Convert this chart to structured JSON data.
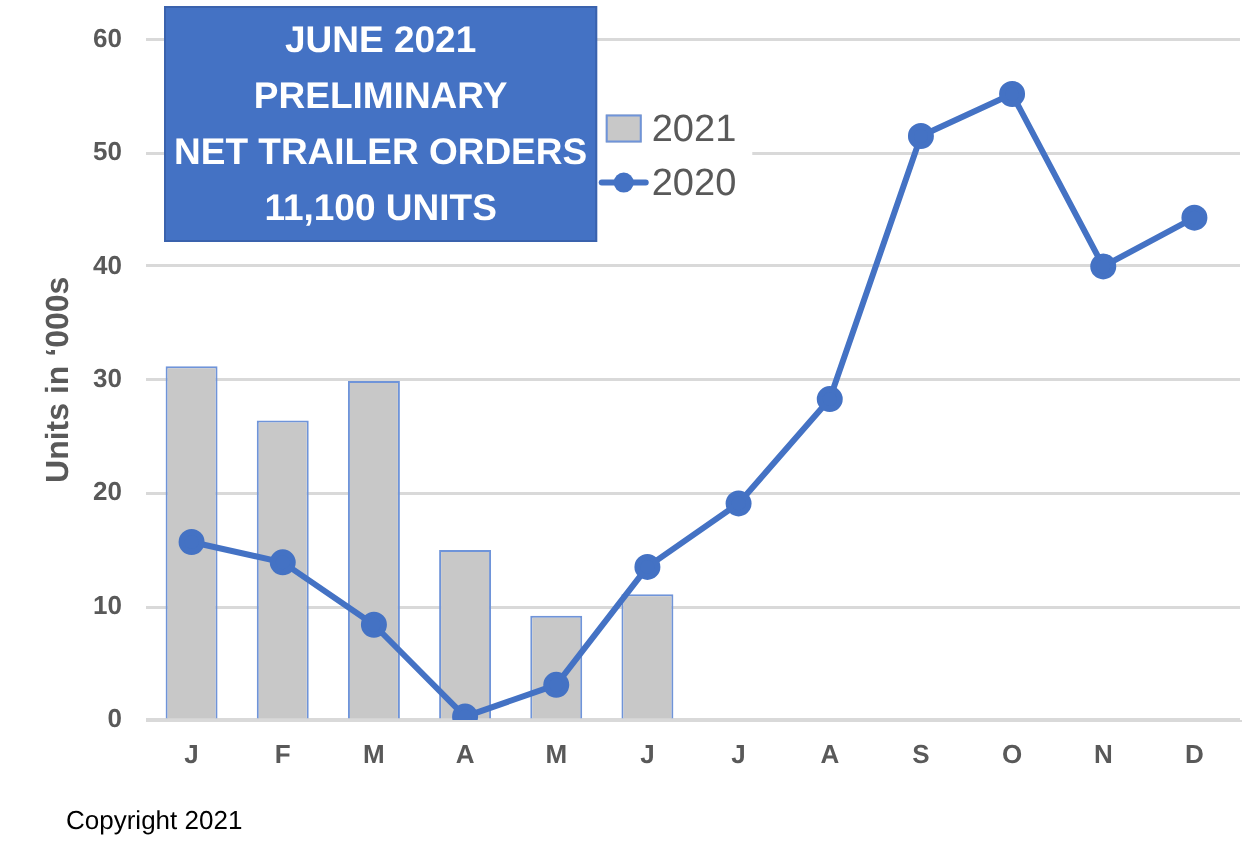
{
  "chart_data": {
    "type": "bar",
    "title": "JUNE 2021\nPRELIMINARY\nNET TRAILER ORDERS\n11,100 UNITS",
    "ylabel": "Units in ‘000s",
    "categories": [
      "J",
      "F",
      "M",
      "A",
      "M",
      "J",
      "J",
      "A",
      "S",
      "O",
      "N",
      "D"
    ],
    "series": [
      {
        "name": "2021",
        "color": "#c8c8c8",
        "values": [
          31.2,
          26.4,
          29.9,
          15.0,
          9.2,
          11.1,
          null,
          null,
          null,
          null,
          null,
          null
        ]
      },
      {
        "name": "2020",
        "type": "line",
        "color": "#4472c4",
        "values": [
          15.7,
          13.9,
          8.4,
          0.3,
          3.1,
          13.5,
          19.1,
          28.3,
          51.5,
          55.2,
          40.0,
          44.3
        ]
      }
    ],
    "ylim": [
      0,
      60
    ],
    "yticks": [
      0,
      10,
      20,
      30,
      40,
      50,
      60
    ],
    "grid": "y",
    "legend": "top",
    "marker": "circle",
    "line_style": "solid",
    "annotations": [
      "Copyright 2021"
    ]
  }
}
